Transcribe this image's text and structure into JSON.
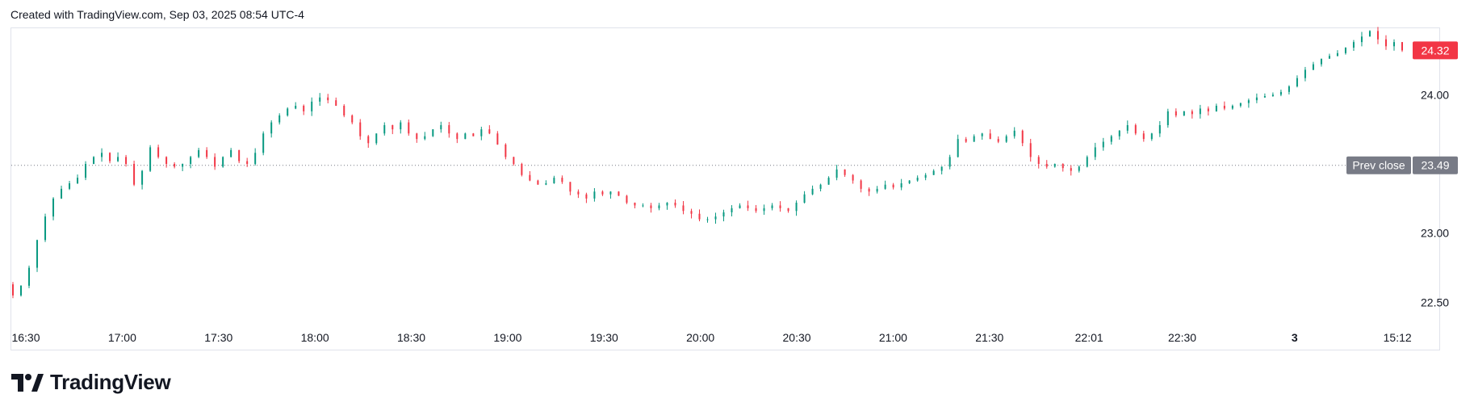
{
  "header": {
    "created_text": "Created with TradingView.com, Sep 03, 2025 08:54 UTC-4"
  },
  "logo": {
    "text": "TradingView"
  },
  "colors": {
    "up": "#089981",
    "down": "#f23645",
    "grid": "#e0e3eb",
    "prev_close": "#787b86",
    "text": "#131722"
  },
  "chart_data": {
    "type": "candlestick",
    "ylim": [
      22.38,
      24.48
    ],
    "y_ticks": [
      "24.00",
      "23.00",
      "22.50"
    ],
    "x_ticks": [
      {
        "label": "16:30",
        "index": 0
      },
      {
        "label": "17:00",
        "index": 30
      },
      {
        "label": "17:30",
        "index": 60
      },
      {
        "label": "18:00",
        "index": 90
      },
      {
        "label": "18:30",
        "index": 120
      },
      {
        "label": "19:00",
        "index": 150
      },
      {
        "label": "19:30",
        "index": 180
      },
      {
        "label": "20:00",
        "index": 210
      },
      {
        "label": "20:30",
        "index": 240
      },
      {
        "label": "21:00",
        "index": 270
      },
      {
        "label": "21:30",
        "index": 300
      },
      {
        "label": "22:01",
        "index": 331
      },
      {
        "label": "22:30",
        "index": 360
      },
      {
        "label": "3",
        "index": 395,
        "bold": true
      },
      {
        "label": "15:12",
        "index": 427
      }
    ],
    "last_price": {
      "label": "24.32",
      "value": 24.32
    },
    "prev_close": {
      "label": "Prev close",
      "value_label": "23.49",
      "value": 23.49
    },
    "closes": [
      22.55,
      22.62,
      22.75,
      22.95,
      23.12,
      23.25,
      23.32,
      23.36,
      23.4,
      23.5,
      23.55,
      23.58,
      23.52,
      23.55,
      23.5,
      23.35,
      23.45,
      23.62,
      23.55,
      23.5,
      23.48,
      23.5,
      23.55,
      23.6,
      23.55,
      23.48,
      23.55,
      23.6,
      23.52,
      23.5,
      23.58,
      23.72,
      23.8,
      23.85,
      23.9,
      23.92,
      23.88,
      23.95,
      23.98,
      23.96,
      23.92,
      23.85,
      23.8,
      23.7,
      23.65,
      23.72,
      23.78,
      23.75,
      23.8,
      23.72,
      23.68,
      23.7,
      23.75,
      23.78,
      23.72,
      23.68,
      23.72,
      23.7,
      23.75,
      23.72,
      23.64,
      23.55,
      23.5,
      23.42,
      23.38,
      23.35,
      23.36,
      23.4,
      23.37,
      23.3,
      23.28,
      23.25,
      23.3,
      23.28,
      23.3,
      23.27,
      23.22,
      23.2,
      23.2,
      23.18,
      23.2,
      23.22,
      23.2,
      23.16,
      23.14,
      23.1,
      23.1,
      23.12,
      23.15,
      23.18,
      23.2,
      23.18,
      23.16,
      23.18,
      23.2,
      23.18,
      23.16,
      23.22,
      23.28,
      23.32,
      23.35,
      23.4,
      23.46,
      23.42,
      23.38,
      23.32,
      23.3,
      23.32,
      23.35,
      23.33,
      23.36,
      23.38,
      23.4,
      23.42,
      23.45,
      23.48,
      23.55,
      23.68,
      23.66,
      23.7,
      23.72,
      23.68,
      23.66,
      23.7,
      23.74,
      23.65,
      23.55,
      23.5,
      23.48,
      23.5,
      23.47,
      23.45,
      23.48,
      23.55,
      23.62,
      23.66,
      23.7,
      23.74,
      23.78,
      23.72,
      23.68,
      23.72,
      23.78,
      23.88,
      23.85,
      23.88,
      23.86,
      23.9,
      23.88,
      23.92,
      23.9,
      23.92,
      23.94,
      23.96,
      23.98,
      23.99,
      24.0,
      24.02,
      24.06,
      24.12,
      24.18,
      24.22,
      24.26,
      24.28,
      24.3,
      24.34,
      24.38,
      24.42,
      24.46,
      24.4,
      24.35,
      24.38,
      24.32
    ]
  }
}
